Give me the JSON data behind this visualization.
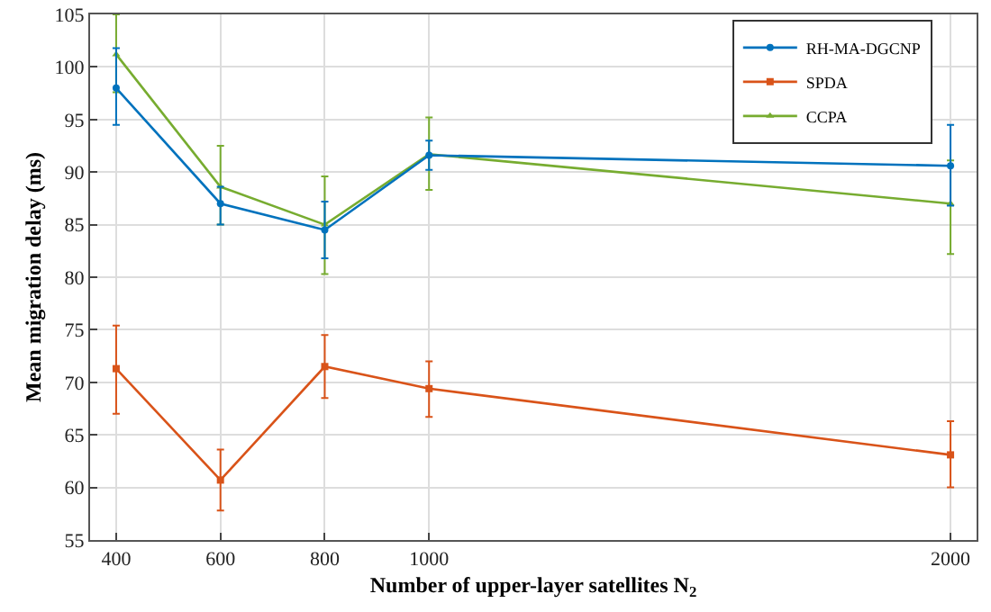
{
  "chart_data": {
    "type": "line",
    "xlabel": "Number of upper-layer satellites N$_{2}$",
    "ylabel": "Mean migration delay (ms)",
    "x": [
      400,
      600,
      800,
      1000,
      2000
    ],
    "xlim": [
      350,
      2050
    ],
    "xticks": [
      400,
      600,
      800,
      1000,
      2000
    ],
    "ylim": [
      55,
      105
    ],
    "yticks": [
      55,
      60,
      65,
      70,
      75,
      80,
      85,
      90,
      95,
      100,
      105
    ],
    "grid": true,
    "legend": "top right",
    "series": [
      {
        "name": "RH-MA-DGCNP",
        "color": "#0072bd",
        "marker": "circle",
        "values": [
          98,
          87,
          84.5,
          91.6,
          90.6
        ],
        "errors": [
          [
            94.5,
            101.8
          ],
          [
            85,
            88.6
          ],
          [
            81.8,
            87.2
          ],
          [
            90.2,
            93
          ],
          [
            86.8,
            94.5
          ]
        ]
      },
      {
        "name": "SPDA",
        "color": "#d95319",
        "marker": "square",
        "values": [
          71.3,
          60.7,
          71.5,
          69.4,
          63.1
        ],
        "errors": [
          [
            67,
            75.4
          ],
          [
            57.8,
            63.6
          ],
          [
            68.5,
            74.5
          ],
          [
            66.7,
            72
          ],
          [
            60,
            66.3
          ]
        ]
      },
      {
        "name": "CCPA",
        "color": "#77ac30",
        "marker": "triangle",
        "values": [
          101.2,
          88.6,
          85,
          91.7,
          87
        ],
        "errors": [
          [
            97.6,
            105
          ],
          [
            85,
            92.5
          ],
          [
            80.3,
            89.6
          ],
          [
            88.3,
            95.2
          ],
          [
            82.2,
            91.1
          ]
        ]
      }
    ]
  }
}
